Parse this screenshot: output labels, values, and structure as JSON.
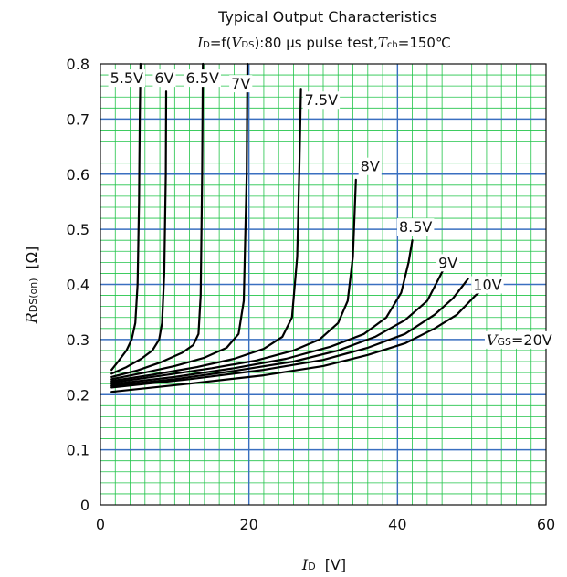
{
  "chart_data": {
    "type": "line",
    "title": "Typical Output Characteristics",
    "subtitle": {
      "id_sym": "I",
      "id_sub": "D",
      "fn": "=f(",
      "vds_sym": "V",
      "vds_sub": "DS",
      "cond": "):80 μs pulse test,",
      "tch_sym": "T",
      "tch_sub": "ch",
      "tch_val": "=150℃"
    },
    "xlabel": {
      "sym": "I",
      "sub": "D",
      "unit": "[V]"
    },
    "ylabel": {
      "sym": "R",
      "sub": "DS(on)",
      "unit": "[Ω]"
    },
    "xlim": [
      0,
      60
    ],
    "ylim": [
      0,
      0.8
    ],
    "x_ticks": [
      "0",
      "20",
      "40",
      "60"
    ],
    "y_ticks": [
      "0",
      "0.1",
      "0.2",
      "0.3",
      "0.4",
      "0.5",
      "0.6",
      "0.7",
      "0.8"
    ],
    "grid": true,
    "colors": {
      "minor_grid": "#22c44a",
      "major_grid": "#3a6fc0",
      "curve": "#000000"
    },
    "vgs_20_label": {
      "sym": "V",
      "sub": "GS",
      "val": "=20V"
    },
    "series": [
      {
        "name": "5.5V",
        "label_at": [
          1.3,
          0.775
        ],
        "x": [
          1.5,
          2.5,
          3.5,
          4.2,
          4.7,
          5.0,
          5.2,
          5.3,
          5.4
        ],
        "y": [
          0.245,
          0.262,
          0.28,
          0.3,
          0.33,
          0.4,
          0.55,
          0.7,
          0.8
        ]
      },
      {
        "name": "6V",
        "label_at": [
          7.3,
          0.775
        ],
        "x": [
          1.5,
          3.5,
          5.5,
          7.0,
          7.9,
          8.3,
          8.6,
          8.8,
          8.85
        ],
        "y": [
          0.238,
          0.25,
          0.265,
          0.28,
          0.3,
          0.33,
          0.42,
          0.6,
          0.75
        ]
      },
      {
        "name": "6.5V",
        "label_at": [
          11.5,
          0.775
        ],
        "x": [
          1.5,
          5,
          8,
          11,
          12.5,
          13.2,
          13.5,
          13.7,
          13.8
        ],
        "y": [
          0.232,
          0.244,
          0.258,
          0.276,
          0.29,
          0.31,
          0.38,
          0.6,
          0.8
        ]
      },
      {
        "name": "7V",
        "label_at": [
          17.6,
          0.765
        ],
        "x": [
          1.5,
          6,
          10,
          14,
          17,
          18.6,
          19.3,
          19.7,
          19.8
        ],
        "y": [
          0.228,
          0.24,
          0.252,
          0.267,
          0.285,
          0.31,
          0.37,
          0.6,
          0.8
        ]
      },
      {
        "name": "7.5V",
        "label_at": [
          27.5,
          0.735
        ],
        "x": [
          1.5,
          7,
          13,
          18,
          22,
          24.5,
          25.8,
          26.5,
          26.8,
          27.0
        ],
        "y": [
          0.225,
          0.236,
          0.25,
          0.265,
          0.283,
          0.305,
          0.34,
          0.45,
          0.62,
          0.755
        ]
      },
      {
        "name": "8V",
        "label_at": [
          35,
          0.615
        ],
        "x": [
          1.5,
          8,
          15,
          21,
          26,
          29.5,
          32,
          33.3,
          34.0,
          34.4
        ],
        "y": [
          0.222,
          0.234,
          0.248,
          0.262,
          0.28,
          0.3,
          0.33,
          0.37,
          0.45,
          0.59
        ]
      },
      {
        "name": "8.5V",
        "label_at": [
          40.2,
          0.505
        ],
        "x": [
          1.5,
          10,
          18,
          25,
          31,
          35.5,
          38.5,
          40.5,
          41.5,
          42.0
        ],
        "y": [
          0.219,
          0.232,
          0.248,
          0.265,
          0.287,
          0.31,
          0.34,
          0.385,
          0.44,
          0.48
        ]
      },
      {
        "name": "9V",
        "label_at": [
          45.5,
          0.44
        ],
        "x": [
          1.5,
          10,
          18,
          26,
          32,
          37,
          41,
          44,
          46.3
        ],
        "y": [
          0.216,
          0.228,
          0.243,
          0.26,
          0.28,
          0.305,
          0.335,
          0.37,
          0.43
        ]
      },
      {
        "name": "10V",
        "label_at": [
          50.2,
          0.4
        ],
        "x": [
          1.5,
          12,
          22,
          30,
          36,
          41,
          45,
          47.5,
          49.5
        ],
        "y": [
          0.213,
          0.228,
          0.245,
          0.263,
          0.285,
          0.31,
          0.345,
          0.375,
          0.41
        ]
      },
      {
        "name": "20V",
        "label_at": [
          52,
          0.3
        ],
        "x": [
          1.5,
          12,
          22,
          30,
          36,
          41,
          45,
          48,
          50.5,
          51.7
        ],
        "y": [
          0.205,
          0.22,
          0.235,
          0.252,
          0.272,
          0.293,
          0.32,
          0.345,
          0.38,
          0.392
        ]
      }
    ]
  }
}
